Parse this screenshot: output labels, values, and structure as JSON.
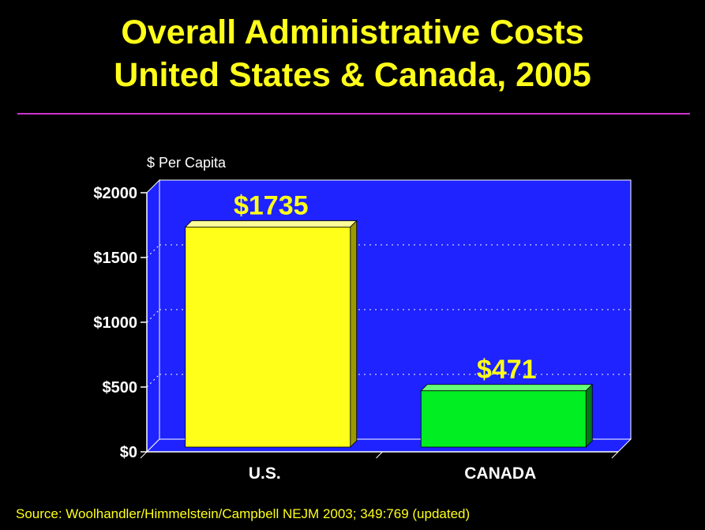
{
  "slide": {
    "title_line1": "Overall Administrative Costs",
    "title_line2": "United States & Canada, 2005",
    "source": "Source: Woolhandler/Himmelstein/Campbell NEJM 2003; 349:769 (updated)"
  },
  "colors": {
    "background": "#000000",
    "title": "#FFFF1A",
    "rule": "#CC33CC",
    "plot_area": "#1E23FF",
    "us_bar": "#FFFF1A",
    "canada_bar": "#00EE22"
  },
  "chart_data": {
    "type": "bar",
    "ylabel": "$ Per Capita",
    "xlabel": "",
    "ylim": [
      0,
      2000
    ],
    "yticks": [
      {
        "value": 0,
        "label": "$0"
      },
      {
        "value": 500,
        "label": "$500"
      },
      {
        "value": 1000,
        "label": "$1000"
      },
      {
        "value": 1500,
        "label": "$1500"
      },
      {
        "value": 2000,
        "label": "$2000"
      }
    ],
    "grid": true,
    "categories": [
      "U.S.",
      "CANADA"
    ],
    "values": [
      1735,
      471
    ],
    "data_labels": [
      "$1735",
      "$471"
    ]
  }
}
